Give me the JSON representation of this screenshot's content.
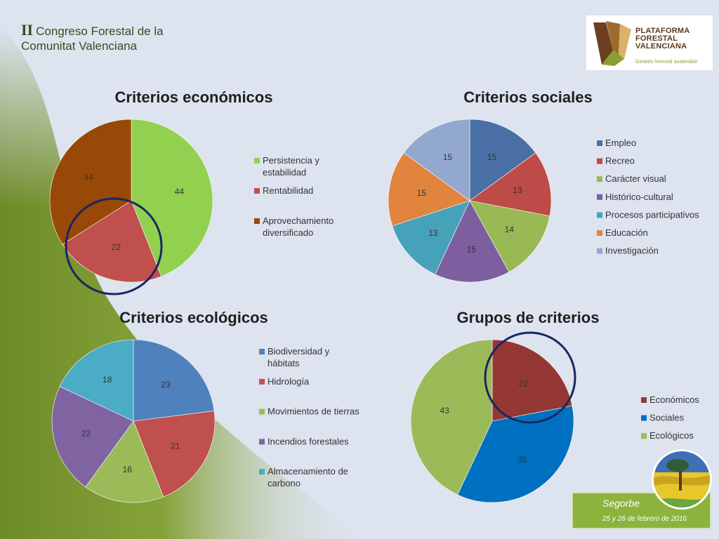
{
  "header": {
    "roman": "II",
    "title_line1": "Congreso Forestal de la",
    "title_line2": "Comunitat Valenciana"
  },
  "logo": {
    "line1": "PLATAFORMA",
    "line2": "FORESTAL",
    "line3": "VALENCIANA",
    "tagline": "Gestión forestal sostenible"
  },
  "footer": {
    "place": "Segorbe",
    "date": "25 y 26 de febrero de 2016"
  },
  "colors": {
    "background": "#dde3ef",
    "green_sidebar": "#6f8a2c",
    "title_text": "#3d4a1f",
    "highlight_circle": "#1a2660"
  },
  "chart_data": [
    {
      "type": "pie",
      "title": "Criterios económicos",
      "categories": [
        "Persistencia y estabilidad",
        "Rentabilidad",
        "Aprovechamiento diversificado"
      ],
      "values": [
        44,
        22,
        34
      ],
      "colors": [
        "#92d050",
        "#c0504d",
        "#984807"
      ],
      "legend": "right",
      "highlight": 1
    },
    {
      "type": "pie",
      "title": "Criterios sociales",
      "categories": [
        "Empleo",
        "Recreo",
        "Carácter visual",
        "Histórico-cultural",
        "Procesos participativos",
        "Educación",
        "Investigación"
      ],
      "values": [
        15,
        13,
        14,
        15,
        13,
        15,
        15
      ],
      "colors": [
        "#4a6fa5",
        "#be4b48",
        "#98b954",
        "#7d5f9f",
        "#46a2b9",
        "#e0843e",
        "#93a8cf"
      ],
      "legend": "right"
    },
    {
      "type": "pie",
      "title": "Criterios ecológicos",
      "categories": [
        "Biodiversidad y hábitats",
        "Hidrología",
        "Movimientos de tierras",
        "Incendios forestales",
        "Almacenamiento de carbono"
      ],
      "values": [
        23,
        21,
        16,
        22,
        18
      ],
      "colors": [
        "#4f81bd",
        "#c0504d",
        "#9bbb59",
        "#8064a2",
        "#4bacc6"
      ],
      "legend": "right"
    },
    {
      "type": "pie",
      "title": "Grupos de criterios",
      "categories": [
        "Económicos",
        "Sociales",
        "Ecológicos"
      ],
      "values": [
        22,
        35,
        43
      ],
      "colors": [
        "#953735",
        "#0070c0",
        "#9bbb59"
      ],
      "legend": "right",
      "highlight": 0
    }
  ]
}
